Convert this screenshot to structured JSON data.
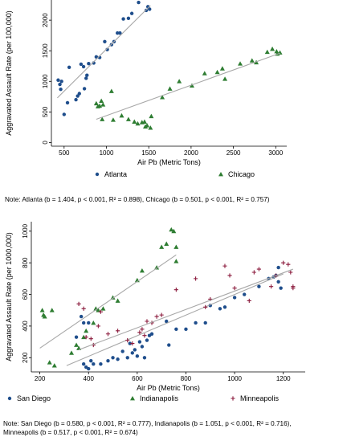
{
  "chart_data": [
    {
      "type": "scatter",
      "xlabel": "Air Pb (Metric Tons)",
      "ylabel": "Aggravated Assault Rate (per 100,000)",
      "xlim": [
        350,
        3130
      ],
      "ylim": [
        -60,
        2330
      ],
      "xticks": [
        500,
        1000,
        1500,
        2000,
        2500,
        3000
      ],
      "yticks": [
        0,
        500,
        1000,
        1500,
        2000
      ],
      "grid": false,
      "legend_position": "bottom",
      "series": [
        {
          "name": "Atlanta",
          "marker": "circle",
          "color": "#1f4e8c",
          "points": [
            [
              430,
              1020
            ],
            [
              450,
              950
            ],
            [
              470,
              1000
            ],
            [
              460,
              870
            ],
            [
              500,
              460
            ],
            [
              540,
              650
            ],
            [
              560,
              1230
            ],
            [
              640,
              700
            ],
            [
              660,
              760
            ],
            [
              680,
              800
            ],
            [
              700,
              1280
            ],
            [
              730,
              1240
            ],
            [
              740,
              880
            ],
            [
              760,
              1050
            ],
            [
              770,
              1100
            ],
            [
              790,
              1290
            ],
            [
              850,
              1300
            ],
            [
              880,
              1400
            ],
            [
              920,
              1390
            ],
            [
              980,
              1650
            ],
            [
              1010,
              1520
            ],
            [
              1060,
              1600
            ],
            [
              1090,
              1650
            ],
            [
              1130,
              1790
            ],
            [
              1160,
              1790
            ],
            [
              1200,
              2020
            ],
            [
              1260,
              2030
            ],
            [
              1300,
              2110
            ],
            [
              1380,
              2290
            ],
            [
              1470,
              2160
            ],
            [
              1490,
              2220
            ],
            [
              1510,
              2180
            ]
          ],
          "fit": [
            [
              420,
              730
            ],
            [
              1520,
              2240
            ]
          ]
        },
        {
          "name": "Chicago",
          "marker": "triangle",
          "color": "#2e7d32",
          "points": [
            [
              880,
              640
            ],
            [
              900,
              590
            ],
            [
              920,
              600
            ],
            [
              940,
              680
            ],
            [
              960,
              620
            ],
            [
              950,
              380
            ],
            [
              1060,
              840
            ],
            [
              1080,
              370
            ],
            [
              1180,
              440
            ],
            [
              1260,
              380
            ],
            [
              1330,
              340
            ],
            [
              1370,
              310
            ],
            [
              1420,
              330
            ],
            [
              1450,
              340
            ],
            [
              1460,
              260
            ],
            [
              1480,
              280
            ],
            [
              1520,
              240
            ],
            [
              1530,
              430
            ],
            [
              1660,
              740
            ],
            [
              1750,
              880
            ],
            [
              1860,
              1000
            ],
            [
              2010,
              930
            ],
            [
              2160,
              1130
            ],
            [
              2310,
              1150
            ],
            [
              2370,
              1210
            ],
            [
              2400,
              1040
            ],
            [
              2580,
              1290
            ],
            [
              2720,
              1340
            ],
            [
              2770,
              1310
            ],
            [
              2900,
              1480
            ],
            [
              2960,
              1530
            ],
            [
              3010,
              1490
            ],
            [
              3020,
              1450
            ],
            [
              3050,
              1470
            ]
          ],
          "fit": [
            [
              880,
              380
            ],
            [
              3050,
              1460
            ]
          ]
        }
      ],
      "note": "Note: Atlanta (b = 1.404, p < 0.001, R² = 0.898), Chicago (b = 0.501, p < 0.001, R² = 0.757)"
    },
    {
      "type": "scatter",
      "xlabel": "Air Pb (Metric Tons)",
      "ylabel": "Aggravated Assault Rate (per 1000,000)",
      "xlim": [
        165,
        1290
      ],
      "ylim": [
        110,
        1060
      ],
      "xticks": [
        200,
        400,
        600,
        800,
        1000,
        1200
      ],
      "yticks": [
        200,
        400,
        600,
        800,
        1000
      ],
      "grid": false,
      "legend_position": "bottom",
      "series": [
        {
          "name": "San Diego",
          "marker": "circle",
          "color": "#1f4e8c",
          "points": [
            [
              350,
              330
            ],
            [
              370,
              460
            ],
            [
              380,
              420
            ],
            [
              400,
              420
            ],
            [
              380,
              160
            ],
            [
              390,
              140
            ],
            [
              400,
              130
            ],
            [
              410,
              180
            ],
            [
              420,
              160
            ],
            [
              450,
              160
            ],
            [
              480,
              180
            ],
            [
              500,
              200
            ],
            [
              520,
              190
            ],
            [
              540,
              240
            ],
            [
              560,
              200
            ],
            [
              570,
              290
            ],
            [
              580,
              230
            ],
            [
              590,
              250
            ],
            [
              600,
              210
            ],
            [
              610,
              300
            ],
            [
              620,
              270
            ],
            [
              630,
              200
            ],
            [
              640,
              310
            ],
            [
              650,
              340
            ],
            [
              660,
              350
            ],
            [
              720,
              430
            ],
            [
              730,
              280
            ],
            [
              760,
              380
            ],
            [
              800,
              380
            ],
            [
              840,
              420
            ],
            [
              880,
              420
            ],
            [
              900,
              530
            ],
            [
              940,
              510
            ],
            [
              960,
              520
            ],
            [
              1000,
              580
            ],
            [
              1040,
              600
            ],
            [
              1100,
              650
            ],
            [
              1140,
              700
            ],
            [
              1160,
              710
            ],
            [
              1170,
              720
            ],
            [
              1180,
              770
            ],
            [
              1180,
              680
            ],
            [
              1190,
              640
            ]
          ],
          "fit": [
            [
              310,
              150
            ],
            [
              1200,
              730
            ]
          ]
        },
        {
          "name": "Indianapolis",
          "marker": "triangle",
          "color": "#2e7d32",
          "points": [
            [
              210,
              500
            ],
            [
              215,
              470
            ],
            [
              220,
              460
            ],
            [
              240,
              170
            ],
            [
              250,
              500
            ],
            [
              260,
              150
            ],
            [
              330,
              230
            ],
            [
              350,
              280
            ],
            [
              360,
              260
            ],
            [
              380,
              330
            ],
            [
              390,
              370
            ],
            [
              420,
              420
            ],
            [
              430,
              510
            ],
            [
              440,
              500
            ],
            [
              460,
              510
            ],
            [
              500,
              580
            ],
            [
              520,
              560
            ],
            [
              600,
              690
            ],
            [
              620,
              750
            ],
            [
              680,
              770
            ],
            [
              700,
              900
            ],
            [
              720,
              920
            ],
            [
              740,
              1010
            ],
            [
              750,
              1000
            ],
            [
              760,
              900
            ],
            [
              760,
              810
            ]
          ],
          "fit": [
            [
              200,
              260
            ],
            [
              760,
              850
            ]
          ]
        },
        {
          "name": "Minneapolis",
          "marker": "plus",
          "color": "#8b1a3c",
          "points": [
            [
              360,
              540
            ],
            [
              380,
              510
            ],
            [
              390,
              330
            ],
            [
              410,
              320
            ],
            [
              420,
              280
            ],
            [
              440,
              400
            ],
            [
              450,
              490
            ],
            [
              480,
              350
            ],
            [
              520,
              370
            ],
            [
              560,
              310
            ],
            [
              580,
              290
            ],
            [
              610,
              360
            ],
            [
              620,
              380
            ],
            [
              630,
              340
            ],
            [
              640,
              430
            ],
            [
              660,
              420
            ],
            [
              680,
              460
            ],
            [
              700,
              470
            ],
            [
              760,
              630
            ],
            [
              840,
              700
            ],
            [
              880,
              520
            ],
            [
              900,
              570
            ],
            [
              960,
              780
            ],
            [
              980,
              720
            ],
            [
              1000,
              640
            ],
            [
              1060,
              560
            ],
            [
              1080,
              740
            ],
            [
              1100,
              760
            ],
            [
              1150,
              650
            ],
            [
              1170,
              720
            ],
            [
              1200,
              800
            ],
            [
              1220,
              790
            ],
            [
              1230,
              740
            ],
            [
              1240,
              650
            ],
            [
              1240,
              640
            ]
          ],
          "fit": [
            [
              360,
              250
            ],
            [
              1240,
              760
            ]
          ]
        }
      ],
      "note_line1": "Note: San Diego (b = 0.580, p < 0.001, R² = 0.777), Indianapolis (b = 1.051, p < 0.001, R² = 0.716),",
      "note_line2": "Minneapolis (b = 0.517, p < 0.001, R² = 0.674)"
    }
  ]
}
